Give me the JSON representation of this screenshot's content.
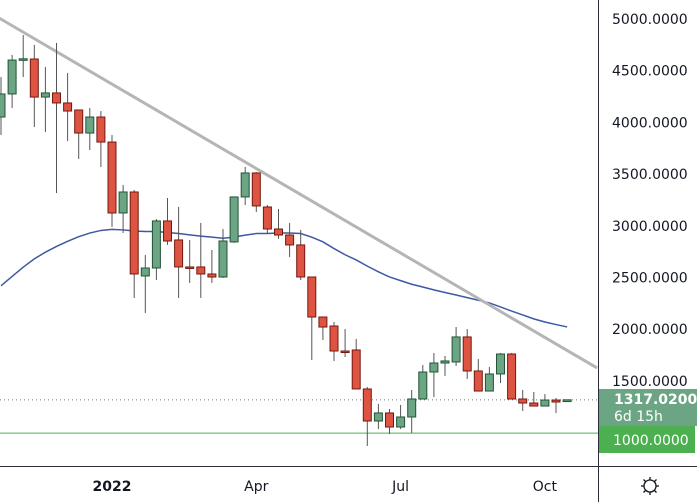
{
  "chart_data": {
    "type": "candlestick",
    "title": "",
    "xlabel": "",
    "ylabel": "",
    "ylim": [
      580,
      5150
    ],
    "y_ticks": [
      "5000.0000",
      "4500.0000",
      "4000.0000",
      "3500.0000",
      "3000.0000",
      "2500.0000",
      "2000.0000",
      "1500.0000"
    ],
    "y_tick_values": [
      5000,
      4500,
      4000,
      3500,
      3000,
      2500,
      2000,
      1500
    ],
    "x_ticks": [
      {
        "label": "2022",
        "candle_index": 10
      },
      {
        "label": "Apr",
        "candle_index": 23
      },
      {
        "label": "Jul",
        "candle_index": 36
      },
      {
        "label": "Oct",
        "candle_index": 49
      }
    ],
    "grid": false,
    "candles": [
      {
        "o": 4052,
        "h": 4439,
        "l": 3878,
        "c": 4275
      },
      {
        "o": 4275,
        "h": 4652,
        "l": 4139,
        "c": 4603
      },
      {
        "o": 4603,
        "h": 4845,
        "l": 4439,
        "c": 4615
      },
      {
        "o": 4613,
        "h": 4750,
        "l": 3955,
        "c": 4245
      },
      {
        "o": 4245,
        "h": 4536,
        "l": 3907,
        "c": 4285
      },
      {
        "o": 4285,
        "h": 4768,
        "l": 3317,
        "c": 4188
      },
      {
        "o": 4188,
        "h": 4478,
        "l": 3820,
        "c": 4110
      },
      {
        "o": 4120,
        "h": 4120,
        "l": 3646,
        "c": 3897
      },
      {
        "o": 3897,
        "h": 4139,
        "l": 3733,
        "c": 4052
      },
      {
        "o": 4052,
        "h": 4110,
        "l": 3569,
        "c": 3810
      },
      {
        "o": 3810,
        "h": 3878,
        "l": 2989,
        "c": 3124
      },
      {
        "o": 3124,
        "h": 3395,
        "l": 2930,
        "c": 3327
      },
      {
        "o": 3327,
        "h": 3346,
        "l": 2302,
        "c": 2534
      },
      {
        "o": 2515,
        "h": 2718,
        "l": 2157,
        "c": 2592
      },
      {
        "o": 2592,
        "h": 3066,
        "l": 2476,
        "c": 3047
      },
      {
        "o": 3047,
        "h": 3269,
        "l": 2815,
        "c": 2853
      },
      {
        "o": 2863,
        "h": 3182,
        "l": 2302,
        "c": 2602
      },
      {
        "o": 2602,
        "h": 2863,
        "l": 2447,
        "c": 2592
      },
      {
        "o": 2602,
        "h": 3027,
        "l": 2302,
        "c": 2534
      },
      {
        "o": 2534,
        "h": 2766,
        "l": 2447,
        "c": 2505
      },
      {
        "o": 2505,
        "h": 2969,
        "l": 2495,
        "c": 2853
      },
      {
        "o": 2844,
        "h": 3279,
        "l": 2834,
        "c": 3279
      },
      {
        "o": 3279,
        "h": 3569,
        "l": 3201,
        "c": 3511
      },
      {
        "o": 3511,
        "h": 3520,
        "l": 3134,
        "c": 3192
      },
      {
        "o": 3182,
        "h": 3201,
        "l": 2930,
        "c": 2969
      },
      {
        "o": 2969,
        "h": 3163,
        "l": 2873,
        "c": 2911
      },
      {
        "o": 2911,
        "h": 3027,
        "l": 2698,
        "c": 2815
      },
      {
        "o": 2815,
        "h": 2960,
        "l": 2476,
        "c": 2505
      },
      {
        "o": 2505,
        "h": 2505,
        "l": 1702,
        "c": 2118
      },
      {
        "o": 2118,
        "h": 2118,
        "l": 1896,
        "c": 2021
      },
      {
        "o": 2031,
        "h": 2070,
        "l": 1693,
        "c": 1789
      },
      {
        "o": 1789,
        "h": 2002,
        "l": 1731,
        "c": 1780
      },
      {
        "o": 1799,
        "h": 1906,
        "l": 1422,
        "c": 1422
      },
      {
        "o": 1422,
        "h": 1441,
        "l": 871,
        "c": 1112
      },
      {
        "o": 1112,
        "h": 1277,
        "l": 1035,
        "c": 1190
      },
      {
        "o": 1190,
        "h": 1228,
        "l": 987,
        "c": 1054
      },
      {
        "o": 1054,
        "h": 1267,
        "l": 1035,
        "c": 1151
      },
      {
        "o": 1151,
        "h": 1412,
        "l": 996,
        "c": 1325
      },
      {
        "o": 1325,
        "h": 1654,
        "l": 1325,
        "c": 1586
      },
      {
        "o": 1586,
        "h": 1770,
        "l": 1344,
        "c": 1673
      },
      {
        "o": 1673,
        "h": 1741,
        "l": 1548,
        "c": 1693
      },
      {
        "o": 1683,
        "h": 2021,
        "l": 1644,
        "c": 1925
      },
      {
        "o": 1925,
        "h": 2002,
        "l": 1519,
        "c": 1596
      },
      {
        "o": 1596,
        "h": 1712,
        "l": 1402,
        "c": 1402
      },
      {
        "o": 1402,
        "h": 1635,
        "l": 1402,
        "c": 1567
      },
      {
        "o": 1567,
        "h": 1770,
        "l": 1480,
        "c": 1760
      },
      {
        "o": 1760,
        "h": 1770,
        "l": 1325,
        "c": 1325
      },
      {
        "o": 1325,
        "h": 1412,
        "l": 1209,
        "c": 1286
      },
      {
        "o": 1286,
        "h": 1393,
        "l": 1257,
        "c": 1257
      },
      {
        "o": 1257,
        "h": 1373,
        "l": 1257,
        "c": 1315
      },
      {
        "o": 1315,
        "h": 1335,
        "l": 1190,
        "c": 1296
      },
      {
        "o": 1300,
        "h": 1320,
        "l": 1296,
        "c": 1317.02
      }
    ],
    "moving_average": [
      2420,
      2510,
      2600,
      2680,
      2745,
      2800,
      2850,
      2895,
      2930,
      2955,
      2965,
      2960,
      2950,
      2945,
      2945,
      2935,
      2925,
      2912,
      2900,
      2890,
      2880,
      2890,
      2910,
      2925,
      2925,
      2930,
      2930,
      2925,
      2890,
      2845,
      2780,
      2720,
      2670,
      2610,
      2555,
      2505,
      2470,
      2435,
      2408,
      2380,
      2355,
      2331,
      2305,
      2280,
      2254,
      2215,
      2175,
      2138,
      2100,
      2070,
      2045,
      2022
    ],
    "trendline": {
      "start": {
        "candle_index": 0,
        "price": 5010
      },
      "end": {
        "candle_index": 53.7,
        "price": 1625
      }
    },
    "horizontal_line": {
      "price": 1000,
      "label": "1000.0000"
    },
    "last_price": {
      "price": 1317.02,
      "label": "1317.0200",
      "countdown": "6d 15h"
    },
    "colors": {
      "up_fill": "#6ba583",
      "up_border": "#225437",
      "down_fill": "#dd5443",
      "down_border": "#74190f",
      "ma": "#3f58a3",
      "trendline": "#b5b5b5",
      "hline": "#4caf50",
      "last_price_box": "#6ba583",
      "hline_box": "#4caf50"
    }
  },
  "toolbar": {
    "settings_icon": "gear-icon"
  }
}
